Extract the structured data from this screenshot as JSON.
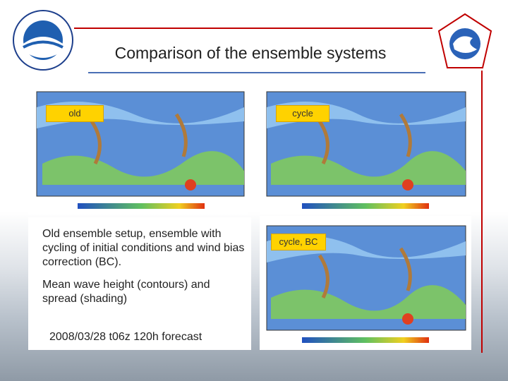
{
  "header": {
    "title": "Comparison of the ensemble systems"
  },
  "panels": [
    {
      "label": "old"
    },
    {
      "label": "cycle"
    },
    {
      "label": "cycle, BC"
    }
  ],
  "text": [
    "Old ensemble setup, ensemble with cycling of initial conditions and wind bias correction (BC).",
    "Mean wave height (contours) and spread (shading)",
    "2008/03/28 t06z 120h forecast"
  ]
}
